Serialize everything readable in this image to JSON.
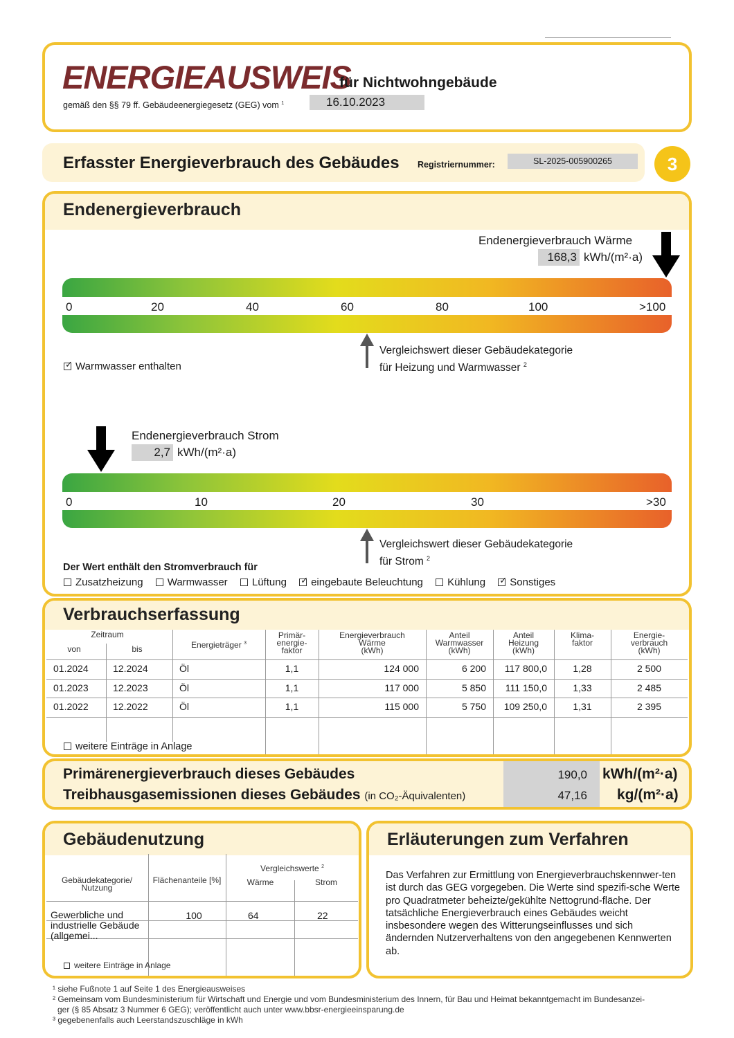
{
  "header": {
    "title": "ENERGIEAUSWEIS",
    "subtitle": "für Nichtwohngebäude",
    "law": "gemäß den §§ 79 ff. Gebäudeenergiegesetz (GEG) vom",
    "law_sup": "1",
    "date": "16.10.2023"
  },
  "section": {
    "title": "Erfasster Energieverbrauch des Gebäudes",
    "reg_label": "Registriernummer:",
    "reg_number": "SL-2025-005900265",
    "page": "3"
  },
  "endenergie": {
    "title": "Endenergieverbrauch",
    "waerme": {
      "label": "Endenergieverbrauch Wärme",
      "value": "168,3",
      "unit": "kWh/(m²·a)",
      "ticks": [
        "0",
        "20",
        "40",
        "60",
        "80",
        "100",
        ">100"
      ],
      "compare": "Vergleichswert dieser Gebäudekategorie",
      "compare2": "für Heizung und Warmwasser",
      "compare_sup": "2",
      "warmwasser": "Warmwasser enthalten"
    },
    "strom": {
      "label": "Endenergieverbrauch Strom",
      "value": "2,7",
      "unit": "kWh/(m²·a)",
      "ticks": [
        "0",
        "10",
        "20",
        "30",
        ">30"
      ],
      "compare": "Vergleichswert dieser Gebäudekategorie",
      "compare2": "für Strom",
      "compare_sup": "2"
    },
    "strom_includes": "Der Wert enthält den Stromverbrauch für",
    "options": [
      {
        "label": "Zusatzheizung",
        "checked": false
      },
      {
        "label": "Warmwasser",
        "checked": false
      },
      {
        "label": "Lüftung",
        "checked": false
      },
      {
        "label": "eingebaute Beleuchtung",
        "checked": true
      },
      {
        "label": "Kühlung",
        "checked": false
      },
      {
        "label": "Sonstiges",
        "checked": true
      }
    ]
  },
  "verbrauch": {
    "title": "Verbrauchserfassung",
    "headers": {
      "zeitraum": "Zeitraum",
      "von": "von",
      "bis": "bis",
      "traeger": "Energieträger",
      "traeger_sup": "3",
      "pef": "Primär-\nenergie-\nfaktor",
      "waerme": "Energieverbrauch\nWärme\n(kWh)",
      "ww": "Anteil\nWarmwasser\n(kWh)",
      "hz": "Anteil\nHeizung\n(kWh)",
      "klima": "Klima-\nfaktor",
      "strom": "Energie-\nverbrauch\n(kWh)"
    },
    "rows": [
      [
        "01.2024",
        "12.2024",
        "Öl",
        "1,1",
        "124 000",
        "6 200",
        "117 800,0",
        "1,28",
        "2 500"
      ],
      [
        "01.2023",
        "12.2023",
        "Öl",
        "1,1",
        "117 000",
        "5 850",
        "111 150,0",
        "1,33",
        "2 485"
      ],
      [
        "01.2022",
        "12.2022",
        "Öl",
        "1,1",
        "115 000",
        "5 750",
        "109 250,0",
        "1,31",
        "2 395"
      ]
    ],
    "more": "weitere Einträge in Anlage"
  },
  "primaer": {
    "label1": "Primärenergieverbrauch dieses Gebäudes",
    "value1": "190,0",
    "unit1": "kWh/(m²·a)",
    "label2": "Treibhausgasemissionen dieses Gebäudes",
    "label2_note": "(in CO₂-Äquivalenten)",
    "value2": "47,16",
    "unit2": "kg/(m²·a)"
  },
  "nutzung": {
    "title": "Gebäudenutzung",
    "h_kat": "Gebäudekategorie/\nNutzung",
    "h_flaeche": "Flächenanteile [%]",
    "h_vergleich": "Vergleichswerte",
    "h_vergleich_sup": "2",
    "h_waerme": "Wärme",
    "h_strom": "Strom",
    "row": {
      "kat": "Gewerbliche und industrielle Gebäude (allgemei...",
      "flaeche": "100",
      "waerme": "64",
      "strom": "22"
    },
    "more": "weitere Einträge in Anlage"
  },
  "erlaeuterung": {
    "title": "Erläuterungen zum Verfahren",
    "text": "Das Verfahren zur Ermittlung von Energieverbrauchskennwer-ten ist durch das GEG vorgegeben. Die Werte sind spezifi-sche Werte pro Quadratmeter beheizte/gekühlte Nettogrund-fläche. Der tatsächliche Energieverbrauch eines Gebäudes weicht insbesondere wegen des Witterungseinflusses und sich ändernden Nutzerverhaltens von den angegebenen Kennwerten ab."
  },
  "footnotes": [
    "¹ siehe Fußnote 1 auf Seite 1 des Energieausweises",
    "² Gemeinsam vom Bundesministerium für Wirtschaft und Energie und vom Bundesministerium des Innern, für Bau und Heimat bekanntgemacht im Bundesanzei-",
    "ger (§ 85 Absatz 3 Nummer 6 GEG); veröffentlicht auch unter www.bbsr-energieeinsparung.de",
    "³ gegebenenfalls auch Leerstandszuschläge in kWh"
  ]
}
